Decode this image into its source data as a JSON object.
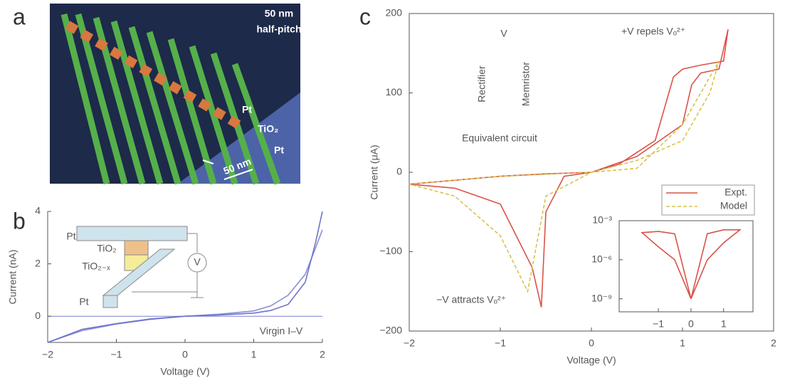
{
  "panel_labels": [
    "a",
    "b",
    "c"
  ],
  "image_a": {
    "labels": [
      "50 nm",
      "half-pitch",
      "Pt",
      "TiO₂",
      "Pt",
      "50 nm"
    ]
  },
  "chart_data": [
    {
      "type": "line",
      "xlabel": "Voltage (V)",
      "ylabel": "Current (nA)",
      "xlim": [
        -2,
        2
      ],
      "ylim": [
        -1,
        4
      ],
      "xticks": [
        {
          "value": -2,
          "label": "−2"
        },
        {
          "value": -1,
          "label": "−1"
        },
        0,
        1,
        2
      ],
      "yticks": [
        0,
        2,
        4
      ],
      "annotations": [
        "Pt",
        "TiO₂",
        "TiO₂₋ₓ",
        "Pt",
        "V",
        "Virgin I–V"
      ],
      "series": [
        {
          "color": "#8a8fd8",
          "x": [
            -2,
            -1.5,
            -1,
            -0.5,
            0,
            0.5,
            1,
            1.25,
            1.5,
            1.75,
            1.9,
            2
          ],
          "values": [
            -1,
            -0.55,
            -0.3,
            -0.12,
            0,
            0.08,
            0.2,
            0.4,
            0.8,
            1.6,
            2.6,
            3.3
          ]
        },
        {
          "color": "#6d74c9",
          "x": [
            -2,
            -1.5,
            -1,
            -0.5,
            0,
            0.5,
            1,
            1.25,
            1.5,
            1.75,
            1.9,
            2
          ],
          "values": [
            -1,
            -0.5,
            -0.28,
            -0.1,
            0,
            0.05,
            0.12,
            0.22,
            0.45,
            1.3,
            2.8,
            4
          ]
        }
      ]
    },
    {
      "type": "line",
      "xlabel": "Voltage (V)",
      "ylabel": "Current (μA)",
      "xlim": [
        -2,
        2
      ],
      "ylim": [
        -200,
        200
      ],
      "xticks": [
        {
          "value": -2,
          "label": "−2"
        },
        {
          "value": -1,
          "label": "−1"
        },
        0,
        1,
        2
      ],
      "yticks": [
        {
          "value": -200,
          "label": "−200"
        },
        {
          "value": -100,
          "label": "−100"
        },
        0,
        100,
        200
      ],
      "annotations": [
        "V",
        "Rectifier",
        "Memristor",
        "Equivalent circuit",
        "+V repels Vₒ²⁺",
        "−V attracts Vₒ²⁺"
      ],
      "legend": "center right",
      "series": [
        {
          "name": "Expt.",
          "color": "#d9534a",
          "line_style": "solid",
          "x": [
            0,
            0.5,
            1,
            1.1,
            1.2,
            1.4,
            1.5,
            1.45,
            1.2,
            1,
            0.9,
            0.7,
            0.3,
            0,
            -0.3,
            -0.5,
            -0.55,
            -0.65,
            -1,
            -1.5,
            -2,
            -1.5,
            -1,
            -0.5,
            0
          ],
          "values": [
            0,
            20,
            60,
            110,
            125,
            130,
            180,
            140,
            135,
            130,
            120,
            40,
            10,
            0,
            -5,
            -50,
            -170,
            -120,
            -40,
            -20,
            -15,
            -10,
            -5,
            -2,
            0
          ]
        },
        {
          "name": "Model",
          "color": "#d8c24a",
          "line_style": "dashed",
          "x": [
            0,
            0.5,
            1,
            1.3,
            1.4,
            1.2,
            1,
            0.5,
            0,
            -0.5,
            -0.7,
            -1,
            -1.5,
            -2,
            -1,
            0
          ],
          "values": [
            0,
            15,
            40,
            100,
            140,
            100,
            60,
            5,
            0,
            -30,
            -150,
            -80,
            -30,
            -15,
            -5,
            0
          ]
        }
      ]
    },
    {
      "type": "line",
      "log_y": true,
      "xlim": [
        -2.2,
        1.9
      ],
      "ylim": [
        1e-10,
        0.001
      ],
      "xticks": [
        {
          "value": -1,
          "label": "−1"
        },
        0,
        1
      ],
      "yticks": [
        {
          "value": 0.001,
          "label": "10⁻³"
        },
        {
          "value": 1e-06,
          "label": "10⁻⁶"
        },
        {
          "value": 1e-09,
          "label": "10⁻⁹"
        }
      ],
      "series": [
        {
          "color": "#d9534a",
          "x": [
            0,
            0.5,
            1,
            1.5,
            1,
            0.5,
            0,
            -0.5,
            -1,
            -1.5,
            -1,
            -0.5,
            0
          ],
          "values": [
            1e-09,
            1e-06,
            2e-05,
            0.0002,
            0.0002,
            0.0001,
            1e-09,
            0.0001,
            0.00015,
            0.00012,
            1e-05,
            1e-06,
            1e-09
          ]
        }
      ]
    }
  ]
}
